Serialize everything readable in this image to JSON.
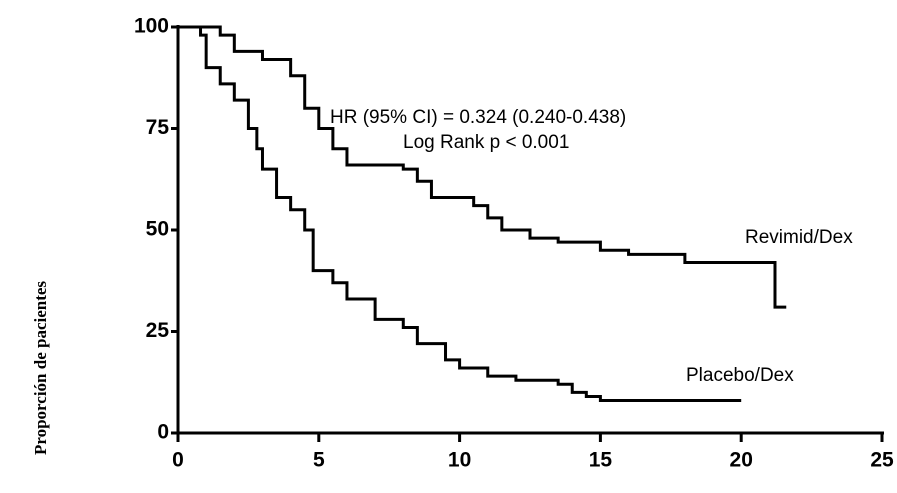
{
  "chart_data": {
    "type": "step",
    "y_label": "Proporción de pacientes",
    "annotations": [
      "HR (95% CI) = 0.324 (0.240-0.438)",
      "Log Rank p < 0.001"
    ],
    "xlim": [
      0,
      25
    ],
    "ylim": [
      0,
      100
    ],
    "xticks": [
      0,
      5,
      10,
      15,
      20,
      25
    ],
    "yticks": [
      0,
      25,
      50,
      75,
      100
    ],
    "series": [
      {
        "name": "Revimid/Dex",
        "color": "#000000",
        "x": [
          0,
          1.5,
          2,
          3,
          4,
          4.5,
          5,
          5.5,
          6,
          8,
          8.5,
          9,
          10.5,
          11,
          11.5,
          12.5,
          13.5,
          15,
          16,
          18,
          21.2,
          21.6
        ],
        "values": [
          100,
          98,
          94,
          92,
          88,
          80,
          75,
          70,
          66,
          65,
          62,
          58,
          56,
          53,
          50,
          48,
          47,
          45,
          44,
          42,
          31,
          31
        ]
      },
      {
        "name": "Placebo/Dex",
        "color": "#000000",
        "x": [
          0,
          0.8,
          1,
          1.5,
          2,
          2.5,
          2.8,
          3,
          3.5,
          4,
          4.5,
          4.8,
          5.5,
          6,
          7,
          8,
          8.5,
          9.5,
          10,
          11,
          12,
          13.5,
          14,
          14.5,
          15,
          20
        ],
        "values": [
          100,
          98,
          90,
          86,
          82,
          75,
          70,
          65,
          58,
          55,
          50,
          40,
          37,
          33,
          28,
          26,
          22,
          18,
          16,
          14,
          13,
          12,
          10,
          9,
          8,
          8
        ]
      }
    ]
  }
}
